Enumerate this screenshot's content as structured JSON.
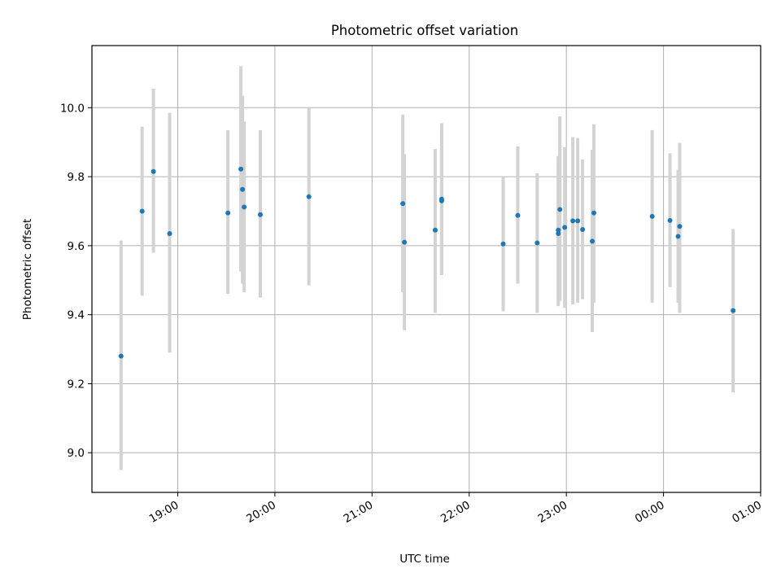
{
  "chart_data": {
    "type": "scatter",
    "title": "Photometric offset variation",
    "xlabel": "UTC time",
    "ylabel": "Photometric offset",
    "x_unit": "UTC time (HH:MM)",
    "x_ticks": [
      "19:00",
      "20:00",
      "21:00",
      "22:00",
      "23:00",
      "00:00",
      "01:00"
    ],
    "y_ticks": [
      "9.0",
      "9.2",
      "9.4",
      "9.6",
      "9.8",
      "10.0"
    ],
    "xlim": [
      "18:07",
      "25:00"
    ],
    "ylim": [
      8.885,
      10.18
    ],
    "grid": true,
    "marker_color": "#1f77b4",
    "errorbar_color": "#d3d3d3",
    "points": [
      {
        "t": "18:25",
        "y": 9.28,
        "lo": 8.95,
        "hi": 9.615
      },
      {
        "t": "18:38",
        "y": 9.7,
        "lo": 9.455,
        "hi": 9.945
      },
      {
        "t": "18:45",
        "y": 9.815,
        "lo": 9.58,
        "hi": 10.055
      },
      {
        "t": "18:55",
        "y": 9.635,
        "lo": 9.29,
        "hi": 9.985
      },
      {
        "t": "19:31",
        "y": 9.695,
        "lo": 9.46,
        "hi": 9.935
      },
      {
        "t": "19:39",
        "y": 9.822,
        "lo": 9.525,
        "hi": 10.12
      },
      {
        "t": "19:40",
        "y": 9.763,
        "lo": 9.49,
        "hi": 10.035
      },
      {
        "t": "19:41",
        "y": 9.712,
        "lo": 9.465,
        "hi": 9.96
      },
      {
        "t": "19:51",
        "y": 9.69,
        "lo": 9.45,
        "hi": 9.935
      },
      {
        "t": "20:21",
        "y": 9.742,
        "lo": 9.485,
        "hi": 10.0
      },
      {
        "t": "21:19",
        "y": 9.722,
        "lo": 9.465,
        "hi": 9.98
      },
      {
        "t": "21:20",
        "y": 9.61,
        "lo": 9.355,
        "hi": 9.865
      },
      {
        "t": "21:39",
        "y": 9.645,
        "lo": 9.405,
        "hi": 9.88
      },
      {
        "t": "21:43",
        "y": 9.73,
        "lo": 9.515,
        "hi": 9.95
      },
      {
        "t": "21:43",
        "y": 9.735,
        "lo": 9.52,
        "hi": 9.955
      },
      {
        "t": "22:21",
        "y": 9.605,
        "lo": 9.41,
        "hi": 9.8
      },
      {
        "t": "22:30",
        "y": 9.688,
        "lo": 9.49,
        "hi": 9.888
      },
      {
        "t": "22:42",
        "y": 9.608,
        "lo": 9.405,
        "hi": 9.81
      },
      {
        "t": "22:55",
        "y": 9.635,
        "lo": 9.425,
        "hi": 9.855
      },
      {
        "t": "22:55",
        "y": 9.645,
        "lo": 9.43,
        "hi": 9.86
      },
      {
        "t": "22:56",
        "y": 9.705,
        "lo": 9.44,
        "hi": 9.975
      },
      {
        "t": "22:59",
        "y": 9.653,
        "lo": 9.42,
        "hi": 9.885
      },
      {
        "t": "23:04",
        "y": 9.672,
        "lo": 9.43,
        "hi": 9.915
      },
      {
        "t": "23:07",
        "y": 9.672,
        "lo": 9.435,
        "hi": 9.912
      },
      {
        "t": "23:10",
        "y": 9.647,
        "lo": 9.445,
        "hi": 9.85
      },
      {
        "t": "23:16",
        "y": 9.613,
        "lo": 9.35,
        "hi": 9.878
      },
      {
        "t": "23:17",
        "y": 9.695,
        "lo": 9.435,
        "hi": 9.952
      },
      {
        "t": "23:53",
        "y": 9.685,
        "lo": 9.435,
        "hi": 9.935
      },
      {
        "t": "24:04",
        "y": 9.673,
        "lo": 9.48,
        "hi": 9.868
      },
      {
        "t": "24:09",
        "y": 9.627,
        "lo": 9.435,
        "hi": 9.82
      },
      {
        "t": "24:10",
        "y": 9.656,
        "lo": 9.405,
        "hi": 9.898
      },
      {
        "t": "24:43",
        "y": 9.412,
        "lo": 9.175,
        "hi": 9.648
      }
    ]
  }
}
